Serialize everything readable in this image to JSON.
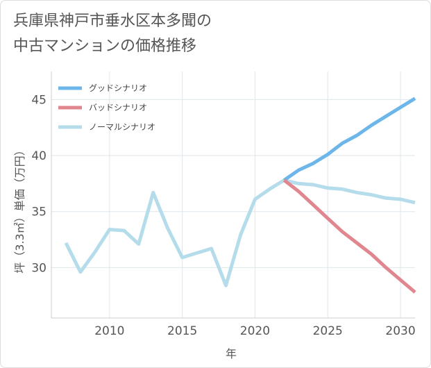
{
  "title_line1": "兵庫県神戸市垂水区本多聞の",
  "title_line2": "中古マンションの価格推移",
  "chart_data": {
    "type": "line",
    "xlabel": "年",
    "ylabel": "坪（3.3㎡）単価（万円）",
    "xlim": [
      2006,
      2031
    ],
    "ylim": [
      25.5,
      47.5
    ],
    "xticks": [
      2010,
      2015,
      2020,
      2025,
      2030
    ],
    "yticks": [
      30,
      35,
      40,
      45
    ],
    "grid": true,
    "legend_position": "top-left",
    "series": [
      {
        "name": "グッドシナリオ",
        "color": "#6cb6ea",
        "x": [
          2022,
          2023,
          2024,
          2025,
          2026,
          2027,
          2028,
          2029,
          2030,
          2031
        ],
        "y": [
          37.8,
          38.7,
          39.3,
          40.1,
          41.1,
          41.8,
          42.7,
          43.5,
          44.3,
          45.1
        ]
      },
      {
        "name": "バッドシナリオ",
        "color": "#e0868f",
        "x": [
          2022,
          2023,
          2024,
          2025,
          2026,
          2027,
          2028,
          2029,
          2030,
          2031
        ],
        "y": [
          37.8,
          36.8,
          35.6,
          34.4,
          33.2,
          32.2,
          31.2,
          30.0,
          28.9,
          27.8
        ]
      },
      {
        "name": "ノーマルシナリオ",
        "color": "#b5dcea",
        "x": [
          2007,
          2008,
          2009,
          2010,
          2011,
          2012,
          2013,
          2014,
          2015,
          2016,
          2017,
          2018,
          2019,
          2020,
          2021,
          2022,
          2023,
          2024,
          2025,
          2026,
          2027,
          2028,
          2029,
          2030,
          2031
        ],
        "y": [
          32.2,
          29.6,
          31.4,
          33.4,
          33.3,
          32.1,
          36.7,
          33.5,
          30.9,
          31.3,
          31.7,
          28.4,
          32.9,
          36.1,
          37.0,
          37.8,
          37.5,
          37.4,
          37.1,
          37.0,
          36.7,
          36.5,
          36.2,
          36.1,
          35.8
        ]
      }
    ]
  }
}
